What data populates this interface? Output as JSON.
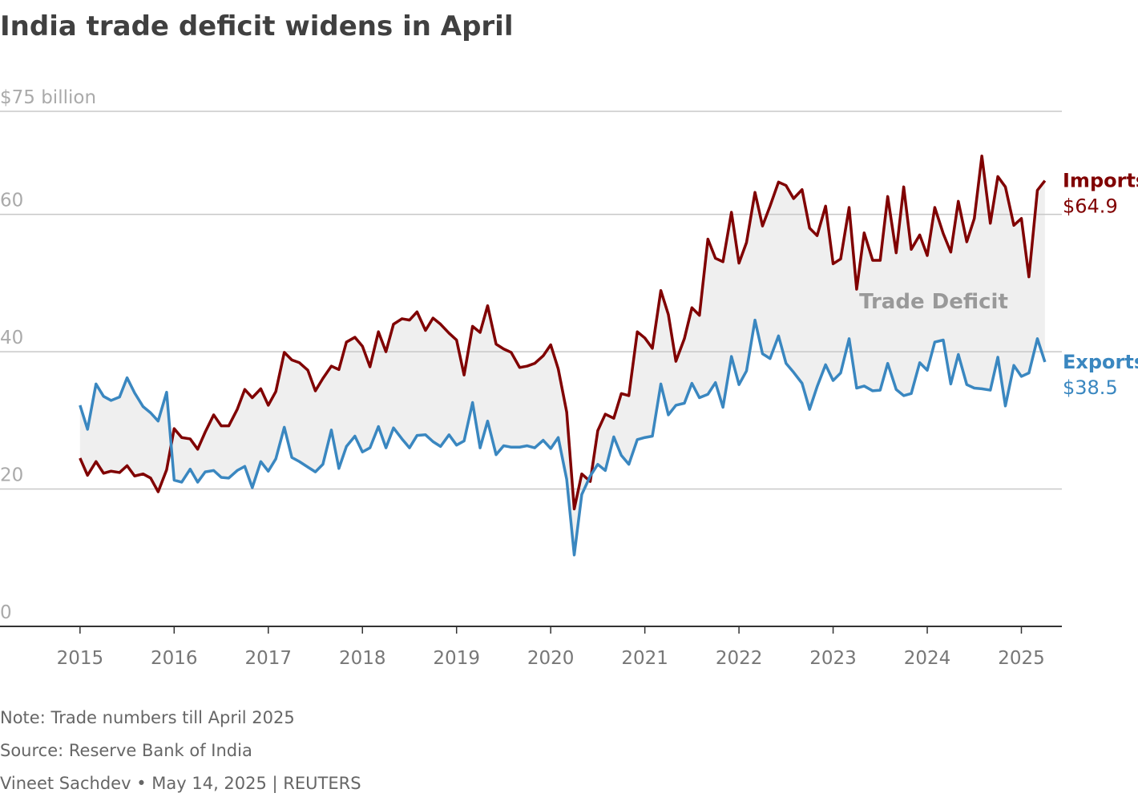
{
  "chart_data": {
    "type": "line",
    "title": "India trade deficit widens in April",
    "annotation": "Trade Deficit",
    "footnotes": [
      "Note: Trade numbers till April 2025",
      "Source: Reserve Bank of India",
      "Vineet Sachdev • May 14, 2025 | REUTERS"
    ],
    "xlim": [
      2014.15,
      2025.43
    ],
    "xticks": [
      2015,
      2016,
      2017,
      2018,
      2019,
      2020,
      2021,
      2022,
      2023,
      2024,
      2025
    ],
    "ylim": [
      0,
      75
    ],
    "yticks": [
      0,
      20,
      40,
      60,
      {
        "value": 75,
        "label": "$75 billion"
      }
    ],
    "grid": true,
    "fill_between_color": "#efefef",
    "x": [
      2015.0,
      2015.08,
      2015.17,
      2015.25,
      2015.33,
      2015.42,
      2015.5,
      2015.58,
      2015.67,
      2015.75,
      2015.83,
      2015.92,
      2016.0,
      2016.08,
      2016.17,
      2016.25,
      2016.33,
      2016.42,
      2016.5,
      2016.58,
      2016.67,
      2016.75,
      2016.83,
      2016.92,
      2017.0,
      2017.08,
      2017.17,
      2017.25,
      2017.33,
      2017.42,
      2017.5,
      2017.58,
      2017.67,
      2017.75,
      2017.83,
      2017.92,
      2018.0,
      2018.08,
      2018.17,
      2018.25,
      2018.33,
      2018.42,
      2018.5,
      2018.58,
      2018.67,
      2018.75,
      2018.83,
      2018.92,
      2019.0,
      2019.08,
      2019.17,
      2019.25,
      2019.33,
      2019.42,
      2019.5,
      2019.58,
      2019.67,
      2019.75,
      2019.83,
      2019.92,
      2020.0,
      2020.08,
      2020.17,
      2020.25,
      2020.33,
      2020.42,
      2020.5,
      2020.58,
      2020.67,
      2020.75,
      2020.83,
      2020.92,
      2021.0,
      2021.08,
      2021.17,
      2021.25,
      2021.33,
      2021.42,
      2021.5,
      2021.58,
      2021.67,
      2021.75,
      2021.83,
      2021.92,
      2022.0,
      2022.08,
      2022.17,
      2022.25,
      2022.33,
      2022.42,
      2022.5,
      2022.58,
      2022.67,
      2022.75,
      2022.83,
      2022.92,
      2023.0,
      2023.08,
      2023.17,
      2023.25,
      2023.33,
      2023.42,
      2023.5,
      2023.58,
      2023.67,
      2023.75,
      2023.83,
      2023.92,
      2024.0,
      2024.08,
      2024.17,
      2024.25,
      2024.33,
      2024.42,
      2024.5,
      2024.58,
      2024.67,
      2024.75,
      2024.83,
      2024.92,
      2025.0,
      2025.08,
      2025.17,
      2025.25
    ],
    "series": [
      {
        "name": "Imports",
        "color": "#800000",
        "values": [
          24.5,
          22.0,
          24.0,
          22.3,
          22.6,
          22.4,
          23.4,
          21.9,
          22.2,
          21.6,
          19.6,
          22.8,
          28.8,
          27.5,
          27.3,
          25.8,
          28.3,
          30.8,
          29.2,
          29.2,
          31.6,
          34.5,
          33.3,
          34.6,
          32.2,
          34.2,
          39.9,
          38.8,
          38.4,
          37.3,
          34.3,
          36.1,
          37.9,
          37.4,
          41.4,
          42.1,
          40.8,
          37.8,
          42.9,
          40.0,
          44.0,
          44.8,
          44.6,
          45.8,
          43.1,
          44.9,
          44.0,
          42.7,
          41.7,
          36.6,
          43.7,
          42.8,
          46.7,
          41.1,
          40.4,
          39.9,
          37.7,
          37.9,
          38.3,
          39.4,
          41.0,
          37.5,
          31.2,
          17.1,
          22.2,
          21.1,
          28.5,
          30.9,
          30.3,
          33.9,
          33.6,
          42.9,
          42.0,
          40.5,
          48.9,
          45.4,
          38.6,
          41.9,
          46.4,
          45.3,
          56.4,
          53.6,
          53.1,
          60.3,
          52.9,
          55.9,
          63.2,
          58.3,
          61.2,
          64.7,
          64.2,
          62.3,
          63.6,
          58.0,
          56.9,
          61.2,
          52.8,
          53.5,
          61.0,
          49.1,
          57.3,
          53.3,
          53.3,
          62.6,
          54.4,
          64.0,
          54.9,
          57.0,
          54.0,
          61.0,
          57.2,
          54.5,
          61.9,
          56.0,
          59.4,
          68.5,
          58.7,
          65.5,
          64.0,
          58.4,
          59.4,
          50.9,
          63.5,
          64.9
        ],
        "value_labels": [
          null,
          null,
          null,
          null,
          null,
          null,
          null,
          null,
          null,
          null,
          null,
          null,
          null,
          null,
          null,
          null,
          null,
          null,
          null,
          null,
          null,
          null,
          null,
          null,
          null,
          null,
          null,
          null,
          null,
          null,
          null,
          null,
          null,
          null,
          null,
          null,
          null,
          null,
          null,
          null,
          null,
          null,
          null,
          null,
          null,
          null,
          null,
          null,
          null,
          null,
          null,
          null,
          null,
          null,
          null,
          null,
          null,
          null,
          null,
          null,
          null,
          null,
          null,
          null,
          null,
          null,
          null,
          null,
          null,
          null,
          null,
          null,
          null,
          null,
          null,
          null,
          null,
          null,
          null,
          null,
          null,
          null,
          null,
          null,
          null,
          null,
          null,
          null,
          null,
          null,
          null,
          null,
          null,
          null,
          null,
          null,
          null,
          null,
          null,
          null,
          null,
          null,
          null,
          null,
          null,
          null,
          null,
          null,
          null,
          null,
          null,
          null,
          null,
          null,
          null,
          null,
          null,
          null,
          null,
          null,
          null,
          null,
          null,
          "$64.9"
        ]
      },
      {
        "name": "Exports",
        "color": "#3a87c0",
        "values": [
          32.2,
          28.7,
          35.3,
          33.5,
          32.9,
          33.4,
          36.2,
          34.0,
          32.0,
          31.1,
          29.9,
          34.1,
          21.3,
          21.0,
          22.9,
          21.0,
          22.5,
          22.7,
          21.7,
          21.6,
          22.7,
          23.3,
          20.2,
          24.0,
          22.6,
          24.4,
          29.0,
          24.6,
          24.0,
          23.2,
          22.5,
          23.6,
          28.6,
          23.0,
          26.2,
          27.7,
          25.4,
          26.0,
          29.1,
          26.0,
          28.9,
          27.3,
          26.0,
          27.8,
          27.9,
          26.9,
          26.2,
          27.9,
          26.4,
          27.0,
          32.6,
          26.0,
          29.9,
          25.0,
          26.3,
          26.1,
          26.1,
          26.3,
          26.0,
          27.1,
          25.9,
          27.5,
          21.4,
          10.4,
          19.2,
          21.9,
          23.6,
          22.7,
          27.6,
          24.9,
          23.6,
          27.2,
          27.5,
          27.7,
          35.3,
          30.8,
          32.2,
          32.5,
          35.4,
          33.3,
          33.8,
          35.5,
          31.9,
          39.3,
          35.2,
          37.2,
          44.6,
          39.7,
          39.0,
          42.3,
          38.3,
          37.0,
          35.4,
          31.6,
          34.9,
          38.1,
          35.8,
          36.9,
          41.9,
          34.7,
          35.0,
          34.3,
          34.4,
          38.3,
          34.5,
          33.6,
          33.9,
          38.4,
          37.3,
          41.4,
          41.7,
          35.3,
          39.6,
          35.2,
          34.7,
          34.6,
          34.4,
          39.2,
          32.1,
          38.0,
          36.4,
          36.9,
          41.9,
          38.5
        ],
        "value_labels": [
          null,
          null,
          null,
          null,
          null,
          null,
          null,
          null,
          null,
          null,
          null,
          null,
          null,
          null,
          null,
          null,
          null,
          null,
          null,
          null,
          null,
          null,
          null,
          null,
          null,
          null,
          null,
          null,
          null,
          null,
          null,
          null,
          null,
          null,
          null,
          null,
          null,
          null,
          null,
          null,
          null,
          null,
          null,
          null,
          null,
          null,
          null,
          null,
          null,
          null,
          null,
          null,
          null,
          null,
          null,
          null,
          null,
          null,
          null,
          null,
          null,
          null,
          null,
          null,
          null,
          null,
          null,
          null,
          null,
          null,
          null,
          null,
          null,
          null,
          null,
          null,
          null,
          null,
          null,
          null,
          null,
          null,
          null,
          null,
          null,
          null,
          null,
          null,
          null,
          null,
          null,
          null,
          null,
          null,
          null,
          null,
          null,
          null,
          null,
          null,
          null,
          null,
          null,
          null,
          null,
          null,
          null,
          null,
          null,
          null,
          null,
          null,
          null,
          null,
          null,
          null,
          null,
          null,
          null,
          null,
          null,
          null,
          null,
          "$38.5"
        ]
      }
    ]
  }
}
